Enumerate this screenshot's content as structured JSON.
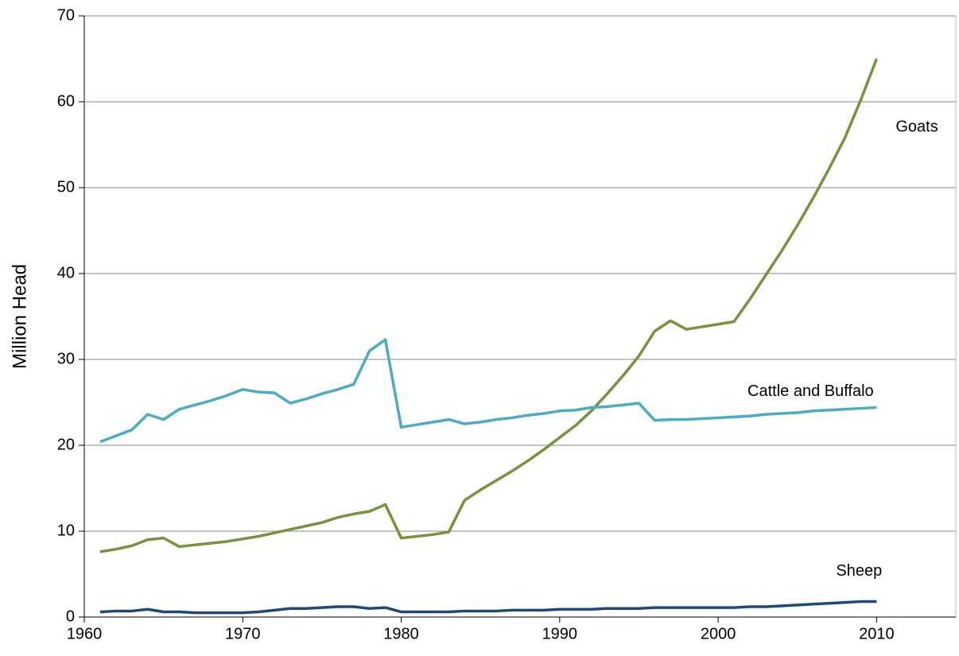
{
  "chart_data": {
    "type": "line",
    "y_label": "Million Head",
    "x": [
      1961,
      1962,
      1963,
      1964,
      1965,
      1966,
      1967,
      1968,
      1969,
      1970,
      1971,
      1972,
      1973,
      1974,
      1975,
      1976,
      1977,
      1978,
      1979,
      1980,
      1981,
      1982,
      1983,
      1984,
      1985,
      1986,
      1987,
      1988,
      1989,
      1990,
      1991,
      1992,
      1993,
      1994,
      1995,
      1996,
      1997,
      1998,
      1999,
      2000,
      2001,
      2002,
      2003,
      2004,
      2005,
      2006,
      2007,
      2008,
      2009,
      2010
    ],
    "series": [
      {
        "name": "Goats",
        "color": "#77933c",
        "values": [
          7.6,
          7.9,
          8.3,
          9.0,
          9.2,
          8.2,
          8.4,
          8.6,
          8.8,
          9.1,
          9.4,
          9.8,
          10.2,
          10.6,
          11.0,
          11.6,
          12.0,
          12.3,
          13.1,
          9.2,
          9.4,
          9.6,
          9.9,
          13.6,
          14.8,
          15.9,
          17.0,
          18.2,
          19.5,
          20.9,
          22.3,
          24.0,
          26.0,
          28.1,
          30.4,
          33.3,
          34.5,
          33.5,
          33.8,
          34.1,
          34.4,
          37.0,
          39.8,
          42.6,
          45.6,
          48.8,
          52.2,
          55.8,
          60.2,
          65.0
        ]
      },
      {
        "name": "Cattle and Buffalo",
        "color": "#4bacc6",
        "values": [
          20.4,
          21.1,
          21.8,
          23.6,
          23.0,
          24.2,
          24.7,
          25.2,
          25.8,
          26.5,
          26.2,
          26.1,
          24.9,
          25.4,
          26.0,
          26.5,
          27.1,
          31.0,
          32.3,
          22.1,
          22.4,
          22.7,
          23.0,
          22.5,
          22.7,
          23.0,
          23.2,
          23.5,
          23.7,
          24.0,
          24.1,
          24.4,
          24.5,
          24.7,
          24.9,
          22.9,
          23.0,
          23.0,
          23.1,
          23.2,
          23.3,
          23.4,
          23.6,
          23.7,
          23.8,
          24.0,
          24.1,
          24.2,
          24.3,
          24.4
        ]
      },
      {
        "name": "Sheep",
        "color": "#1f497d",
        "values": [
          0.6,
          0.7,
          0.7,
          0.9,
          0.6,
          0.6,
          0.5,
          0.5,
          0.5,
          0.5,
          0.6,
          0.8,
          1.0,
          1.0,
          1.1,
          1.2,
          1.2,
          1.0,
          1.1,
          0.6,
          0.6,
          0.6,
          0.6,
          0.7,
          0.7,
          0.7,
          0.8,
          0.8,
          0.8,
          0.9,
          0.9,
          0.9,
          1.0,
          1.0,
          1.0,
          1.1,
          1.1,
          1.1,
          1.1,
          1.1,
          1.1,
          1.2,
          1.2,
          1.3,
          1.4,
          1.5,
          1.6,
          1.7,
          1.8,
          1.8
        ]
      }
    ],
    "xlim": [
      1960,
      2015
    ],
    "xticks": [
      1960,
      1970,
      1980,
      1990,
      2000,
      2010
    ],
    "ylim": [
      0,
      70
    ],
    "yticks": [
      0,
      10,
      20,
      30,
      40,
      50,
      60,
      70
    ],
    "grid": true
  }
}
